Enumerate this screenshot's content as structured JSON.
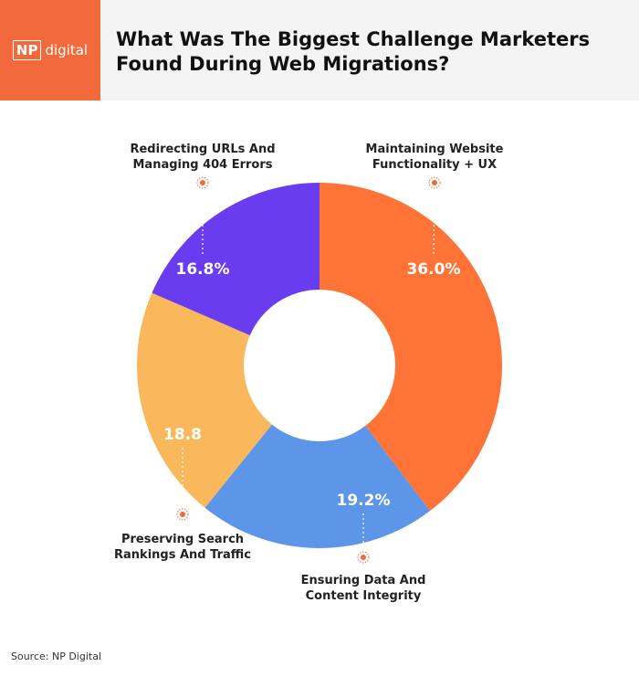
{
  "logo": {
    "mark": "NP",
    "text": "digital"
  },
  "source": "Source: NP Digital",
  "chart_data": {
    "type": "donut",
    "title": "What Was The Biggest Challenge Marketers Found During Web Migrations?",
    "categories": [
      "Maintaining Website Functionality + UX",
      "Ensuring Data And Content Integrity",
      "Preserving Search Rankings And Traffic",
      "Redirecting URLs And Managing 404 Errors"
    ],
    "values": [
      36.0,
      19.2,
      18.8,
      16.8
    ],
    "value_labels": [
      "36.0%",
      "19.2%",
      "18.8",
      "16.8%"
    ],
    "colors": [
      "#ff7436",
      "#5d95e8",
      "#f9b85b",
      "#6a3cf0"
    ]
  }
}
